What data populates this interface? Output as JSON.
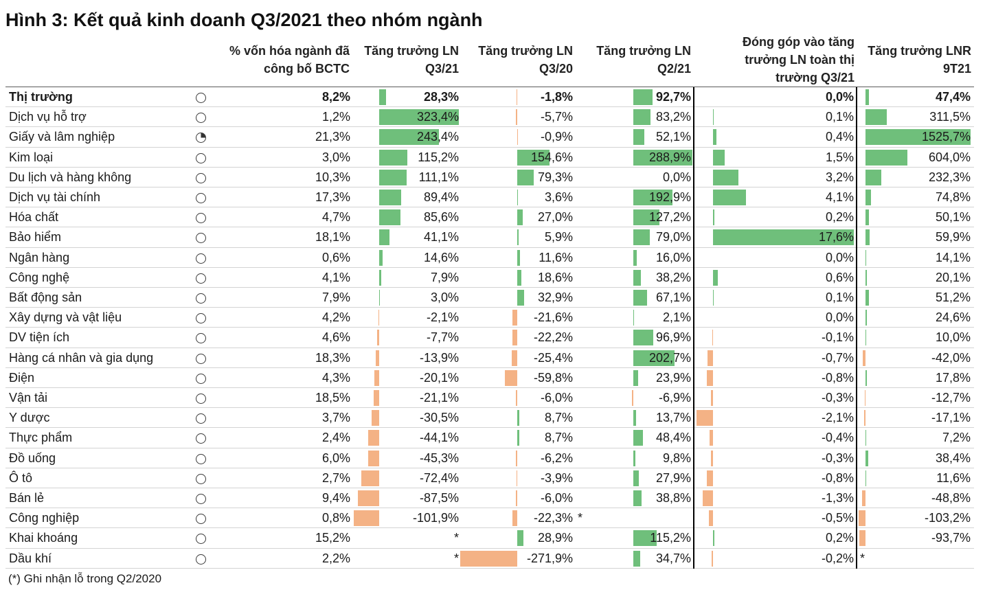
{
  "colors": {
    "positive_bar": "#6fbf7b",
    "negative_bar": "#f4b285",
    "divider": "#000000",
    "text": "#1a1a1a"
  },
  "chart_data": {
    "type": "table",
    "title": "Hình 3: Kết quả kinh doanh Q3/2021 theo nhóm ngành",
    "columns": [
      {
        "label_lines": [
          "% vốn hóa ngành đã",
          "công bố BCTC"
        ],
        "data_bars": false
      },
      {
        "label_lines": [
          "Tăng trưởng LN",
          "Q3/21"
        ],
        "data_bars": true
      },
      {
        "label_lines": [
          "Tăng trưởng LN",
          "Q3/20"
        ],
        "data_bars": true
      },
      {
        "label_lines": [
          "Tăng trưởng LN",
          "Q2/21"
        ],
        "data_bars": true
      },
      {
        "label_lines": [
          "Đóng góp vào tăng",
          "trưởng LN toàn thị",
          "trường Q3/21"
        ],
        "data_bars": true
      },
      {
        "label_lines": [
          "Tăng trưởng LNR",
          "9T21"
        ],
        "data_bars": true
      }
    ],
    "rows": [
      {
        "sector": "Thị trường",
        "icon": "harvey-ball-empty-icon",
        "is_total": true,
        "values": [
          "8,2%",
          "28,3%",
          "-1,8%",
          "92,7%",
          "0,0%",
          "47,4%"
        ]
      },
      {
        "sector": "Dịch vụ hỗ trợ",
        "icon": "harvey-ball-empty-icon",
        "values": [
          "1,2%",
          "323,4%",
          "-5,7%",
          "83,2%",
          "0,1%",
          "311,5%"
        ]
      },
      {
        "sector": "Giấy và lâm nghiệp",
        "icon": "harvey-ball-quarter-icon",
        "values": [
          "21,3%",
          "243,4%",
          "-0,9%",
          "52,1%",
          "0,4%",
          "1525,7%"
        ]
      },
      {
        "sector": "Kim loại",
        "icon": "harvey-ball-empty-icon",
        "values": [
          "3,0%",
          "115,2%",
          "154,6%",
          "288,9%",
          "1,5%",
          "604,0%"
        ]
      },
      {
        "sector": "Du lịch và hàng không",
        "icon": "harvey-ball-empty-icon",
        "values": [
          "10,3%",
          "111,1%",
          "79,3%",
          "0,0%",
          "3,2%",
          "232,3%"
        ]
      },
      {
        "sector": "Dịch vụ tài chính",
        "icon": "harvey-ball-empty-icon",
        "values": [
          "17,3%",
          "89,4%",
          "3,6%",
          "192,9%",
          "4,1%",
          "74,8%"
        ]
      },
      {
        "sector": "Hóa chất",
        "icon": "harvey-ball-empty-icon",
        "values": [
          "4,7%",
          "85,6%",
          "27,0%",
          "127,2%",
          "0,2%",
          "50,1%"
        ]
      },
      {
        "sector": "Bảo hiểm",
        "icon": "harvey-ball-empty-icon",
        "values": [
          "18,1%",
          "41,1%",
          "5,9%",
          "79,0%",
          "17,6%",
          "59,9%"
        ]
      },
      {
        "sector": "Ngân hàng",
        "icon": "harvey-ball-empty-icon",
        "values": [
          "0,6%",
          "14,6%",
          "11,6%",
          "16,0%",
          "0,0%",
          "14,1%"
        ]
      },
      {
        "sector": "Công nghệ",
        "icon": "harvey-ball-empty-icon",
        "values": [
          "4,1%",
          "7,9%",
          "18,6%",
          "38,2%",
          "0,6%",
          "20,1%"
        ]
      },
      {
        "sector": "Bất động sản",
        "icon": "harvey-ball-empty-icon",
        "values": [
          "7,9%",
          "3,0%",
          "32,9%",
          "67,1%",
          "0,1%",
          "51,2%"
        ]
      },
      {
        "sector": "Xây dựng và vật liệu",
        "icon": "harvey-ball-empty-icon",
        "values": [
          "4,2%",
          "-2,1%",
          "-21,6%",
          "2,1%",
          "0,0%",
          "24,6%"
        ]
      },
      {
        "sector": "DV tiện ích",
        "icon": "harvey-ball-empty-icon",
        "values": [
          "4,6%",
          "-7,7%",
          "-22,2%",
          "96,9%",
          "-0,1%",
          "10,0%"
        ]
      },
      {
        "sector": "Hàng cá nhân và gia dụng",
        "icon": "harvey-ball-empty-icon",
        "values": [
          "18,3%",
          "-13,9%",
          "-25,4%",
          "202,7%",
          "-0,7%",
          "-42,0%"
        ]
      },
      {
        "sector": "Điện",
        "icon": "harvey-ball-empty-icon",
        "values": [
          "4,3%",
          "-20,1%",
          "-59,8%",
          "23,9%",
          "-0,8%",
          "17,8%"
        ]
      },
      {
        "sector": "Vận tải",
        "icon": "harvey-ball-empty-icon",
        "values": [
          "18,5%",
          "-21,1%",
          "-6,0%",
          "-6,9%",
          "-0,3%",
          "-12,7%"
        ]
      },
      {
        "sector": "Y dược",
        "icon": "harvey-ball-empty-icon",
        "values": [
          "3,7%",
          "-30,5%",
          "8,7%",
          "13,7%",
          "-2,1%",
          "-17,1%"
        ]
      },
      {
        "sector": "Thực phẩm",
        "icon": "harvey-ball-empty-icon",
        "values": [
          "2,4%",
          "-44,1%",
          "8,7%",
          "48,4%",
          "-0,4%",
          "7,2%"
        ]
      },
      {
        "sector": "Đồ uống",
        "icon": "harvey-ball-empty-icon",
        "values": [
          "6,0%",
          "-45,3%",
          "-6,2%",
          "9,8%",
          "-0,3%",
          "38,4%"
        ]
      },
      {
        "sector": "Ô tô",
        "icon": "harvey-ball-empty-icon",
        "values": [
          "2,7%",
          "-72,4%",
          "-3,9%",
          "27,9%",
          "-0,8%",
          "11,6%"
        ]
      },
      {
        "sector": "Bán lẻ",
        "icon": "harvey-ball-empty-icon",
        "values": [
          "9,4%",
          "-87,5%",
          "-6,0%",
          "38,8%",
          "-1,3%",
          "-48,8%"
        ]
      },
      {
        "sector": "Công nghiệp",
        "icon": "harvey-ball-empty-icon",
        "values": [
          "0,8%",
          "-101,9%",
          "-22,3%",
          "*",
          "-0,5%",
          "-103,2%"
        ]
      },
      {
        "sector": "Khai khoáng",
        "icon": "harvey-ball-empty-icon",
        "values": [
          "15,2%",
          "*",
          "28,9%",
          "115,2%",
          "0,2%",
          "-93,7%"
        ]
      },
      {
        "sector": "Dầu khí",
        "icon": "harvey-ball-empty-icon",
        "values": [
          "2,2%",
          "*",
          "-271,9%",
          "34,7%",
          "-0,2%",
          "*"
        ]
      }
    ],
    "note": "(*) Ghi nhận lỗ trong Q2/2020"
  }
}
